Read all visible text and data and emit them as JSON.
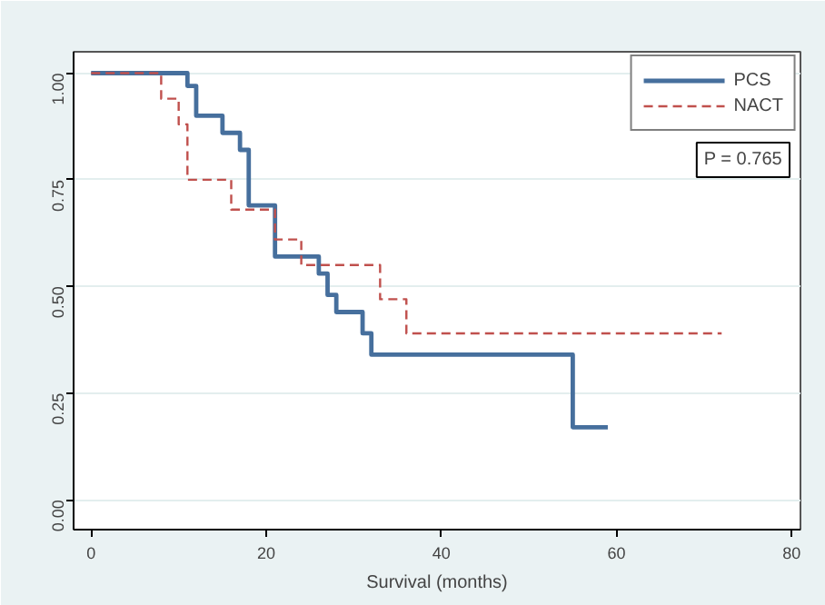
{
  "chart_data": {
    "type": "step",
    "xlabel": "Survival (months)",
    "xlim": [
      -2,
      81
    ],
    "xticks": [
      0,
      20,
      40,
      60,
      80
    ],
    "ylim": [
      -0.07,
      1.05
    ],
    "yticks": [
      {
        "value": 0,
        "label": "0.00"
      },
      {
        "value": 0.25,
        "label": "0.25"
      },
      {
        "value": 0.5,
        "label": "0.50"
      },
      {
        "value": 0.75,
        "label": "0.75"
      },
      {
        "value": 1,
        "label": "1.00"
      }
    ],
    "grid": "y",
    "legend": "top right",
    "annotations": [
      "P = 0.765"
    ],
    "series": [
      {
        "name": "PCS",
        "color": "#466f9d",
        "line_style": "solid",
        "x": [
          0,
          11,
          12,
          15,
          17,
          18,
          21,
          26,
          27,
          28,
          31,
          32,
          55,
          59
        ],
        "values": [
          1,
          0.97,
          0.9,
          0.86,
          0.82,
          0.69,
          0.57,
          0.53,
          0.48,
          0.44,
          0.39,
          0.34,
          0.17,
          0.17
        ]
      },
      {
        "name": "NACT",
        "color": "#c0504d",
        "line_style": "dashed",
        "x": [
          0,
          8,
          10,
          11,
          16,
          21,
          24,
          33,
          36,
          72
        ],
        "values": [
          1,
          0.94,
          0.88,
          0.75,
          0.68,
          0.61,
          0.55,
          0.47,
          0.39,
          0.39
        ]
      }
    ]
  }
}
